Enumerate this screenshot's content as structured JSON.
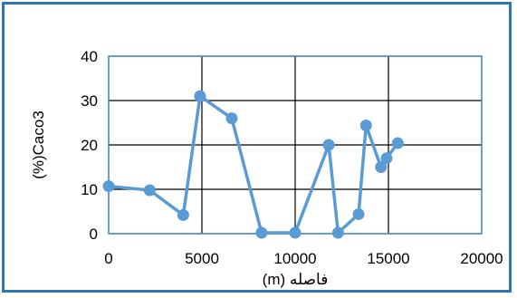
{
  "chart_data": {
    "type": "line",
    "title": "",
    "xlabel": "فاصله (m)",
    "ylabel": "(%)Caco3",
    "xlim": [
      0,
      20000
    ],
    "ylim": [
      0,
      40
    ],
    "xticks": [
      "0",
      "5000",
      "10000",
      "15000",
      "20000"
    ],
    "yticks": [
      "0",
      "10",
      "20",
      "30",
      "40"
    ],
    "grid": true,
    "legend": "none",
    "series": [
      {
        "color": "#5b9bd5",
        "marker": "circle",
        "points": [
          {
            "x": 0,
            "y": 10.7
          },
          {
            "x": 2200,
            "y": 9.8
          },
          {
            "x": 4000,
            "y": 4.2
          },
          {
            "x": 4900,
            "y": 31.0
          },
          {
            "x": 6600,
            "y": 26.0
          },
          {
            "x": 8200,
            "y": 0.2
          },
          {
            "x": 10000,
            "y": 0.2
          },
          {
            "x": 11800,
            "y": 20.0
          },
          {
            "x": 12300,
            "y": 0.2
          },
          {
            "x": 13400,
            "y": 4.4
          },
          {
            "x": 13800,
            "y": 24.4
          },
          {
            "x": 14600,
            "y": 15.0
          },
          {
            "x": 14900,
            "y": 17.0
          },
          {
            "x": 15500,
            "y": 20.4
          }
        ]
      }
    ]
  },
  "colors": {
    "frame_border": "#2e75b6",
    "plot_border": "#4a90d9",
    "gridline": "#000000",
    "series": "#5b9bd5"
  }
}
